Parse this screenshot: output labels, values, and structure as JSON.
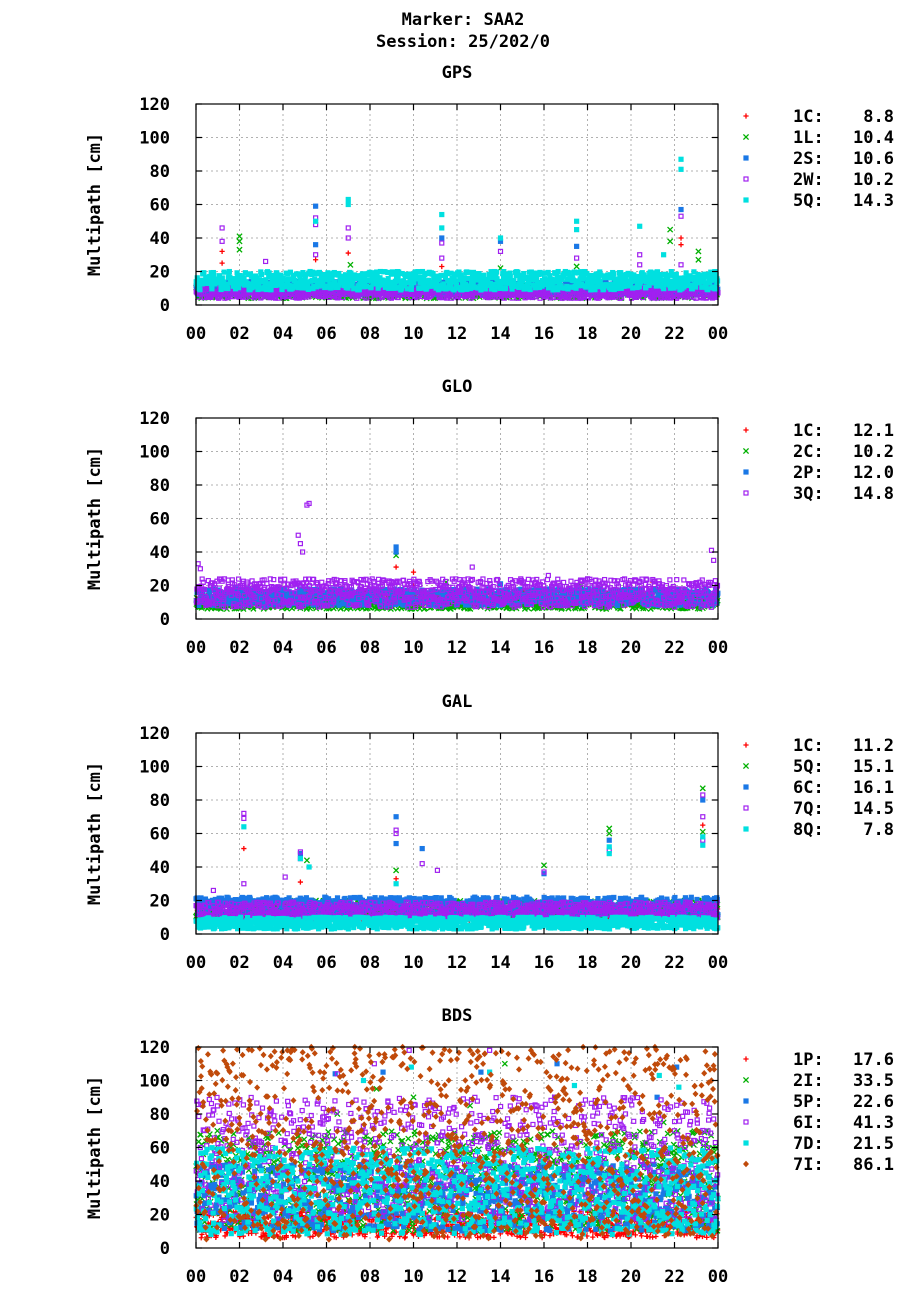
{
  "header": {
    "line1": "Marker: SAA2",
    "line2": "Session: 25/202/0"
  },
  "chart_data": [
    {
      "type": "scatter",
      "title": "GPS",
      "ylabel": "Multipath [cm]",
      "xlabel": "",
      "xlim": [
        0,
        24
      ],
      "ylim": [
        0,
        120
      ],
      "x_ticks": [
        "00",
        "02",
        "04",
        "06",
        "08",
        "10",
        "12",
        "14",
        "16",
        "18",
        "20",
        "22",
        "00"
      ],
      "y_ticks": [
        "0",
        "20",
        "40",
        "60",
        "80",
        "100",
        "120"
      ],
      "grid": true,
      "legend_position": "right",
      "series": [
        {
          "name": "1C:",
          "legend_value": "8.8",
          "color": "#ff0000",
          "marker": "plus",
          "band": [
            7,
            11
          ],
          "spikes": [
            [
              1.2,
              25
            ],
            [
              1.2,
              32
            ],
            [
              5.5,
              27
            ],
            [
              7,
              31
            ],
            [
              11.3,
              23
            ],
            [
              22.3,
              40
            ],
            [
              22.3,
              36
            ]
          ]
        },
        {
          "name": "1L:",
          "legend_value": "10.4",
          "color": "#00b000",
          "marker": "cross",
          "band": [
            4,
            12
          ],
          "spikes": [
            [
              2,
              41
            ],
            [
              2,
              38
            ],
            [
              2,
              33
            ],
            [
              7.1,
              24
            ],
            [
              14,
              22
            ],
            [
              17.5,
              23
            ],
            [
              21.8,
              45
            ],
            [
              21.8,
              38
            ],
            [
              23.1,
              32
            ],
            [
              23.1,
              27
            ]
          ]
        },
        {
          "name": "2S:",
          "legend_value": "10.6",
          "color": "#1a78e6",
          "marker": "square",
          "band": [
            6,
            14
          ],
          "spikes": [
            [
              5.5,
              59
            ],
            [
              5.5,
              36
            ],
            [
              11.3,
              40
            ],
            [
              14,
              38
            ],
            [
              17.5,
              35
            ],
            [
              22.3,
              57
            ]
          ]
        },
        {
          "name": "2W:",
          "legend_value": "10.2",
          "color": "#a020f0",
          "marker": "open-square",
          "band": [
            4,
            11
          ],
          "spikes": [
            [
              1.2,
              46
            ],
            [
              1.2,
              38
            ],
            [
              3.2,
              26
            ],
            [
              5.5,
              52
            ],
            [
              5.5,
              48
            ],
            [
              5.5,
              30
            ],
            [
              7,
              46
            ],
            [
              7,
              40
            ],
            [
              11.3,
              37
            ],
            [
              11.3,
              28
            ],
            [
              14,
              32
            ],
            [
              17.5,
              28
            ],
            [
              20.4,
              30
            ],
            [
              20.4,
              24
            ],
            [
              22.3,
              53
            ],
            [
              22.3,
              24
            ]
          ]
        },
        {
          "name": "5Q:",
          "legend_value": "14.3",
          "color": "#00e0e0",
          "marker": "filled-square",
          "band": [
            9,
            20
          ],
          "spikes": [
            [
              5.5,
              50
            ],
            [
              7,
              63
            ],
            [
              7,
              60
            ],
            [
              11.3,
              54
            ],
            [
              11.3,
              46
            ],
            [
              14,
              40
            ],
            [
              17.5,
              50
            ],
            [
              17.5,
              45
            ],
            [
              20.4,
              47
            ],
            [
              22.3,
              87
            ],
            [
              22.3,
              81
            ],
            [
              21.5,
              30
            ]
          ]
        }
      ]
    },
    {
      "type": "scatter",
      "title": "GLO",
      "ylabel": "Multipath [cm]",
      "xlabel": "",
      "xlim": [
        0,
        24
      ],
      "ylim": [
        0,
        120
      ],
      "x_ticks": [
        "00",
        "02",
        "04",
        "06",
        "08",
        "10",
        "12",
        "14",
        "16",
        "18",
        "20",
        "22",
        "00"
      ],
      "y_ticks": [
        "0",
        "20",
        "40",
        "60",
        "80",
        "100",
        "120"
      ],
      "grid": true,
      "legend_position": "right",
      "series": [
        {
          "name": "1C:",
          "legend_value": "12.1",
          "color": "#ff0000",
          "marker": "plus",
          "band": [
            8,
            16
          ],
          "spikes": [
            [
              9.2,
              31
            ],
            [
              10,
              28
            ],
            [
              10,
              20
            ],
            [
              21,
              22
            ],
            [
              18.7,
              16
            ]
          ]
        },
        {
          "name": "2C:",
          "legend_value": "10.2",
          "color": "#00b000",
          "marker": "cross",
          "band": [
            6,
            13
          ],
          "spikes": [
            [
              9.2,
              38
            ],
            [
              11.5,
              22
            ],
            [
              17.7,
              20
            ]
          ]
        },
        {
          "name": "2P:",
          "legend_value": "12.0",
          "color": "#1a78e6",
          "marker": "square",
          "band": [
            8,
            18
          ],
          "spikes": [
            [
              9.2,
              43
            ],
            [
              9.2,
              40
            ],
            [
              1.8,
              19
            ],
            [
              14,
              21
            ]
          ]
        },
        {
          "name": "3Q:",
          "legend_value": "14.8",
          "color": "#a020f0",
          "marker": "open-square",
          "band": [
            7,
            24
          ],
          "spikes": [
            [
              0.1,
              33
            ],
            [
              0.2,
              30
            ],
            [
              4.7,
              50
            ],
            [
              4.8,
              45
            ],
            [
              5.1,
              68
            ],
            [
              5.2,
              69
            ],
            [
              4.9,
              40
            ],
            [
              12.7,
              31
            ],
            [
              16.2,
              26
            ],
            [
              23.7,
              41
            ],
            [
              23.8,
              35
            ]
          ]
        }
      ]
    },
    {
      "type": "scatter",
      "title": "GAL",
      "ylabel": "Multipath [cm]",
      "xlabel": "",
      "xlim": [
        0,
        24
      ],
      "ylim": [
        0,
        120
      ],
      "x_ticks": [
        "00",
        "02",
        "04",
        "06",
        "08",
        "10",
        "12",
        "14",
        "16",
        "18",
        "20",
        "22",
        "00"
      ],
      "y_ticks": [
        "0",
        "20",
        "40",
        "60",
        "80",
        "100",
        "120"
      ],
      "grid": true,
      "legend_position": "right",
      "series": [
        {
          "name": "1C:",
          "legend_value": "11.2",
          "color": "#ff0000",
          "marker": "plus",
          "band": [
            8,
            15
          ],
          "spikes": [
            [
              2.2,
              51
            ],
            [
              4.8,
              31
            ],
            [
              9.2,
              33
            ],
            [
              23.3,
              65
            ]
          ]
        },
        {
          "name": "5Q:",
          "legend_value": "15.1",
          "color": "#00b000",
          "marker": "cross",
          "band": [
            10,
            20
          ],
          "spikes": [
            [
              5.1,
              44
            ],
            [
              9.2,
              38
            ],
            [
              16,
              41
            ],
            [
              19,
              63
            ],
            [
              19,
              60
            ],
            [
              23.3,
              87
            ],
            [
              23.3,
              61
            ]
          ]
        },
        {
          "name": "6C:",
          "legend_value": "16.1",
          "color": "#1a78e6",
          "marker": "square",
          "band": [
            11,
            22
          ],
          "spikes": [
            [
              4.8,
              48
            ],
            [
              9.2,
              70
            ],
            [
              9.2,
              54
            ],
            [
              10.4,
              51
            ],
            [
              16,
              36
            ],
            [
              19,
              56
            ],
            [
              23.3,
              80
            ]
          ]
        },
        {
          "name": "7Q:",
          "legend_value": "14.5",
          "color": "#a020f0",
          "marker": "open-square",
          "band": [
            9,
            19
          ],
          "spikes": [
            [
              0.8,
              26
            ],
            [
              2.2,
              72
            ],
            [
              2.2,
              69
            ],
            [
              2.2,
              30
            ],
            [
              4.1,
              34
            ],
            [
              4.8,
              49
            ],
            [
              4.8,
              45
            ],
            [
              9.2,
              62
            ],
            [
              9.2,
              60
            ],
            [
              10.4,
              42
            ],
            [
              11.1,
              38
            ],
            [
              16,
              37
            ],
            [
              19,
              50
            ],
            [
              23.3,
              83
            ],
            [
              23.3,
              70
            ],
            [
              23.3,
              56
            ]
          ]
        },
        {
          "name": "8Q:",
          "legend_value": "7.8",
          "color": "#00e0e0",
          "marker": "filled-square",
          "band": [
            3,
            10
          ],
          "spikes": [
            [
              2.2,
              64
            ],
            [
              4.8,
              45
            ],
            [
              5.2,
              40
            ],
            [
              9.2,
              30
            ],
            [
              19,
              52
            ],
            [
              19,
              48
            ],
            [
              23.3,
              53
            ],
            [
              23.3,
              58
            ]
          ]
        }
      ]
    },
    {
      "type": "scatter",
      "title": "BDS",
      "ylabel": "Multipath [cm]",
      "xlabel": "",
      "xlim": [
        0,
        24
      ],
      "ylim": [
        0,
        120
      ],
      "x_ticks": [
        "00",
        "02",
        "04",
        "06",
        "08",
        "10",
        "12",
        "14",
        "16",
        "18",
        "20",
        "22",
        "00"
      ],
      "y_ticks": [
        "0",
        "20",
        "40",
        "60",
        "80",
        "100",
        "120"
      ],
      "grid": true,
      "legend_position": "right",
      "series": [
        {
          "name": "1P:",
          "legend_value": "17.6",
          "color": "#ff0000",
          "marker": "plus",
          "band": [
            6,
            22
          ],
          "spikes": [
            [
              12.3,
              40
            ],
            [
              14,
              30
            ],
            [
              18.4,
              25
            ],
            [
              21,
              35
            ]
          ]
        },
        {
          "name": "2I:",
          "legend_value": "33.5",
          "color": "#00b000",
          "marker": "cross",
          "band": [
            10,
            70
          ],
          "spikes": [
            [
              0.1,
              45
            ],
            [
              6.5,
              80
            ],
            [
              8.3,
              95
            ],
            [
              10,
              90
            ],
            [
              12.6,
              85
            ],
            [
              14.2,
              110
            ],
            [
              16.5,
              90
            ],
            [
              21.5,
              75
            ],
            [
              23.9,
              60
            ]
          ]
        },
        {
          "name": "5P:",
          "legend_value": "22.6",
          "color": "#1a78e6",
          "marker": "square",
          "band": [
            10,
            50
          ],
          "spikes": [
            [
              6.4,
              104
            ],
            [
              8.6,
              105
            ],
            [
              13.1,
              105
            ],
            [
              16.6,
              110
            ],
            [
              22.1,
              108
            ],
            [
              21.2,
              90
            ]
          ]
        },
        {
          "name": "6I:",
          "legend_value": "41.3",
          "color": "#a020f0",
          "marker": "open-square",
          "band": [
            15,
            90
          ],
          "spikes": [
            [
              0.2,
              60
            ],
            [
              6.5,
              104
            ],
            [
              8.2,
              110
            ],
            [
              9.8,
              118
            ],
            [
              13.5,
              118
            ],
            [
              16.5,
              90
            ],
            [
              19,
              75
            ],
            [
              22,
              70
            ],
            [
              23.8,
              77
            ]
          ]
        },
        {
          "name": "7D:",
          "legend_value": "21.5",
          "color": "#00e0e0",
          "marker": "filled-square",
          "band": [
            8,
            60
          ],
          "spikes": [
            [
              7.7,
              100
            ],
            [
              9.9,
              108
            ],
            [
              13.5,
              105
            ],
            [
              17.4,
              97
            ],
            [
              21.3,
              103
            ],
            [
              22.2,
              96
            ]
          ]
        },
        {
          "name": "7I:",
          "legend_value": "86.1",
          "color": "#c04a0a",
          "marker": "diamond",
          "band": [
            5,
            120
          ],
          "spikes": [
            [
              0.3,
              50
            ],
            [
              1.6,
              62
            ],
            [
              4.2,
              118
            ],
            [
              5.3,
              120
            ],
            [
              7.3,
              120
            ],
            [
              9.5,
              120
            ],
            [
              12.6,
              118
            ],
            [
              15.4,
              118
            ],
            [
              17.8,
              120
            ],
            [
              21.1,
              120
            ],
            [
              23.7,
              100
            ]
          ]
        }
      ]
    }
  ]
}
